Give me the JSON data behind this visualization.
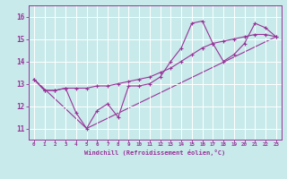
{
  "xlabel": "Windchill (Refroidissement éolien,°C)",
  "bg_color": "#c8eaea",
  "line_color": "#993399",
  "grid_color": "#ffffff",
  "xlim": [
    -0.5,
    23.5
  ],
  "ylim": [
    10.5,
    16.5
  ],
  "yticks": [
    11,
    12,
    13,
    14,
    15,
    16
  ],
  "xticks": [
    0,
    1,
    2,
    3,
    4,
    5,
    6,
    7,
    8,
    9,
    10,
    11,
    12,
    13,
    14,
    15,
    16,
    17,
    18,
    19,
    20,
    21,
    22,
    23
  ],
  "series1_x": [
    0,
    1,
    2,
    3,
    4,
    5,
    6,
    7,
    8,
    9,
    10,
    11,
    12,
    13,
    14,
    15,
    16,
    17,
    18,
    19,
    20,
    21,
    22,
    23
  ],
  "series1_y": [
    13.2,
    12.7,
    12.7,
    12.8,
    11.7,
    11.0,
    11.8,
    12.1,
    11.5,
    12.9,
    12.9,
    13.0,
    13.3,
    14.0,
    14.6,
    15.7,
    15.8,
    14.8,
    14.0,
    14.3,
    14.8,
    15.7,
    15.5,
    15.1
  ],
  "series2_x": [
    0,
    1,
    2,
    3,
    4,
    5,
    6,
    7,
    8,
    9,
    10,
    11,
    12,
    13,
    14,
    15,
    16,
    17,
    18,
    19,
    20,
    21,
    22,
    23
  ],
  "series2_y": [
    13.2,
    12.7,
    12.7,
    12.8,
    12.8,
    12.8,
    12.9,
    12.9,
    13.0,
    13.1,
    13.2,
    13.3,
    13.5,
    13.7,
    14.0,
    14.3,
    14.6,
    14.8,
    14.9,
    15.0,
    15.1,
    15.2,
    15.2,
    15.1
  ],
  "series3_x": [
    0,
    5,
    23
  ],
  "series3_y": [
    13.2,
    11.0,
    15.1
  ]
}
